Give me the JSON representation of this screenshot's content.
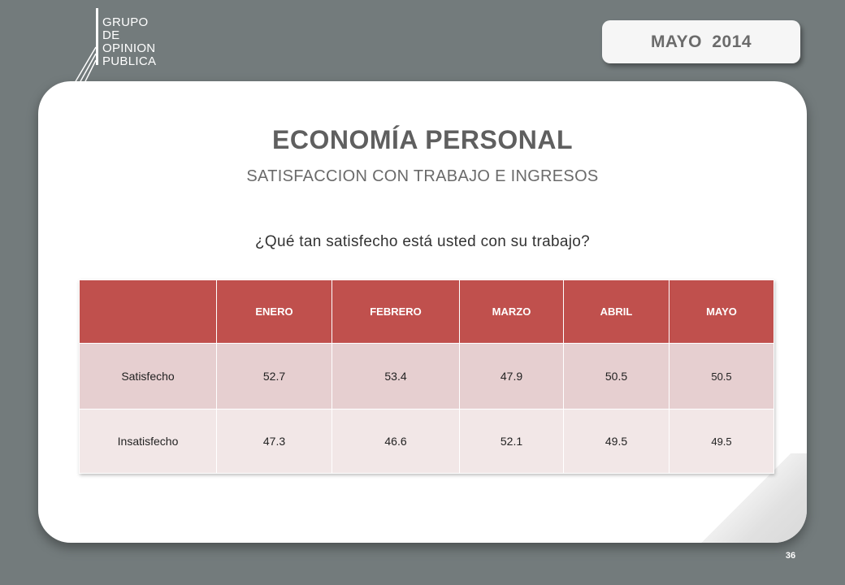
{
  "logo": {
    "lines": [
      "GRUPO",
      "DE",
      "OPINION",
      "PUBLICA"
    ]
  },
  "date_badge": "MAYO  2014",
  "title": "ECONOMÍA PERSONAL",
  "subtitle": "SATISFACCION CON TRABAJO E INGRESOS",
  "question": "¿Qué tan satisfecho está usted con su trabajo?",
  "table": {
    "headers": [
      "",
      "ENERO",
      "FEBRERO",
      "MARZO",
      "ABRIL",
      "MAYO"
    ],
    "rows": [
      {
        "label": "Satisfecho",
        "values": [
          "52.7",
          "53.4",
          "47.9",
          "50.5",
          "50.5"
        ]
      },
      {
        "label": "Insatisfecho",
        "values": [
          "47.3",
          "46.6",
          "52.1",
          "49.5",
          "49.5"
        ]
      }
    ]
  },
  "page_number": "36",
  "colors": {
    "background": "#737b7c",
    "header_red": "#c0504d",
    "row_odd": "#e6cfd0",
    "row_even": "#f2e7e7"
  }
}
